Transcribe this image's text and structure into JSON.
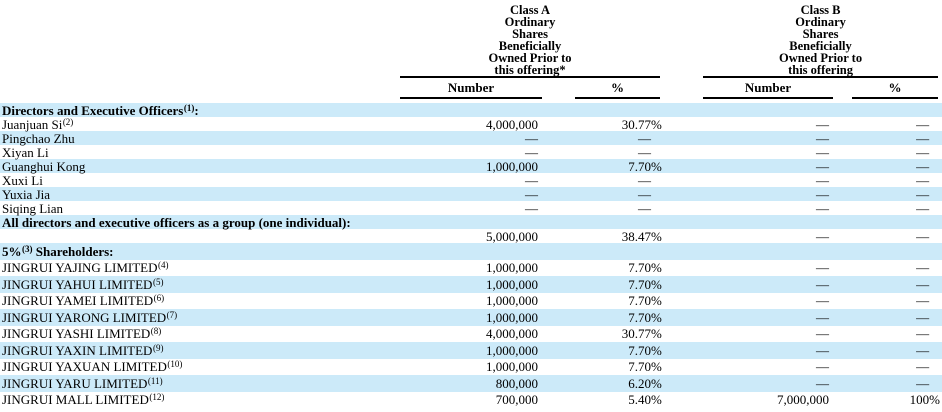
{
  "table": {
    "col_groups": [
      {
        "title_lines": [
          "Class A",
          "Ordinary",
          "Shares",
          "Beneficially",
          "Owned Prior to",
          "this offering*"
        ],
        "sub": [
          "Number",
          "%"
        ]
      },
      {
        "title_lines": [
          "Class B",
          "Ordinary",
          "Shares",
          "Beneficially",
          "Owned Prior to",
          "this offering"
        ],
        "sub": [
          "Number",
          "%"
        ]
      }
    ],
    "rows": [
      {
        "label": {
          "text": "Directors and Executive Officers",
          "sup": "(1)",
          "after": ":"
        },
        "bold": true,
        "shaded": true,
        "section": 1,
        "values": [
          "",
          "",
          "",
          ""
        ]
      },
      {
        "label": {
          "text": "Juanjuan Si",
          "sup": "(2)",
          "after": ""
        },
        "bold": false,
        "shaded": false,
        "section": 1,
        "values": [
          "4,000,000",
          "30.77%",
          "—",
          "—"
        ]
      },
      {
        "label": {
          "text": "Pingchao Zhu",
          "sup": "",
          "after": ""
        },
        "bold": false,
        "shaded": true,
        "section": 1,
        "values": [
          "—",
          "—",
          "—",
          "—"
        ]
      },
      {
        "label": {
          "text": "Xiyan Li",
          "sup": "",
          "after": ""
        },
        "bold": false,
        "shaded": false,
        "section": 1,
        "values": [
          "—",
          "—",
          "—",
          "—"
        ]
      },
      {
        "label": {
          "text": "Guanghui Kong",
          "sup": "",
          "after": ""
        },
        "bold": false,
        "shaded": true,
        "section": 1,
        "values": [
          "1,000,000",
          "7.70%",
          "—",
          "—"
        ]
      },
      {
        "label": {
          "text": "Xuxi Li",
          "sup": "",
          "after": ""
        },
        "bold": false,
        "shaded": false,
        "section": 1,
        "values": [
          "—",
          "—",
          "—",
          "—"
        ]
      },
      {
        "label": {
          "text": "Yuxia Jia",
          "sup": "",
          "after": ""
        },
        "bold": false,
        "shaded": true,
        "section": 1,
        "values": [
          "—",
          "—",
          "—",
          "—"
        ]
      },
      {
        "label": {
          "text": "Siqing Lian",
          "sup": "",
          "after": ""
        },
        "bold": false,
        "shaded": false,
        "section": 1,
        "values": [
          "—",
          "—",
          "—",
          "—"
        ]
      },
      {
        "label": {
          "text": "All directors and executive officers as a group (one individual):",
          "sup": "",
          "after": ""
        },
        "bold": true,
        "shaded": true,
        "section": 1,
        "values": [
          "",
          "",
          "",
          ""
        ]
      },
      {
        "label": {
          "text": "",
          "sup": "",
          "after": ""
        },
        "bold": false,
        "shaded": false,
        "section": 1,
        "values": [
          "5,000,000",
          "38.47%",
          "—",
          "—"
        ]
      },
      {
        "label": {
          "text": "5%",
          "sup": "(3)",
          "after": " Shareholders:"
        },
        "bold": true,
        "shaded": true,
        "section": 2,
        "values": [
          "",
          "",
          "",
          ""
        ]
      },
      {
        "label": {
          "text": "JINGRUI YAJING LIMITED",
          "sup": "(4)",
          "after": ""
        },
        "bold": false,
        "shaded": false,
        "section": 2,
        "values": [
          "1,000,000",
          "7.70%",
          "—",
          "—"
        ]
      },
      {
        "label": {
          "text": "JINGRUI YAHUI LIMITED",
          "sup": "(5)",
          "after": ""
        },
        "bold": false,
        "shaded": true,
        "section": 2,
        "values": [
          "1,000,000",
          "7.70%",
          "—",
          "—"
        ]
      },
      {
        "label": {
          "text": "JINGRUI YAMEI LIMITED",
          "sup": "(6)",
          "after": ""
        },
        "bold": false,
        "shaded": false,
        "section": 2,
        "values": [
          "1,000,000",
          "7.70%",
          "—",
          "—"
        ]
      },
      {
        "label": {
          "text": "JINGRUI YARONG LIMITED",
          "sup": "(7)",
          "after": ""
        },
        "bold": false,
        "shaded": true,
        "section": 2,
        "values": [
          "1,000,000",
          "7.70%",
          "—",
          "—"
        ]
      },
      {
        "label": {
          "text": "JINGRUI YASHI LIMITED",
          "sup": "(8)",
          "after": ""
        },
        "bold": false,
        "shaded": false,
        "section": 2,
        "values": [
          "4,000,000",
          "30.77%",
          "—",
          "—"
        ]
      },
      {
        "label": {
          "text": "JINGRUI YAXIN LIMITED",
          "sup": "(9)",
          "after": ""
        },
        "bold": false,
        "shaded": true,
        "section": 2,
        "values": [
          "1,000,000",
          "7.70%",
          "—",
          "—"
        ]
      },
      {
        "label": {
          "text": "JINGRUI YAXUAN LIMITED",
          "sup": "(10)",
          "after": ""
        },
        "bold": false,
        "shaded": false,
        "section": 2,
        "values": [
          "1,000,000",
          "7.70%",
          "—",
          "—"
        ]
      },
      {
        "label": {
          "text": "JINGRUI YARU LIMITED",
          "sup": "(11)",
          "after": ""
        },
        "bold": false,
        "shaded": true,
        "section": 2,
        "values": [
          "800,000",
          "6.20%",
          "—",
          "—"
        ]
      },
      {
        "label": {
          "text": "JINGRUI MALL LIMITED",
          "sup": "(12)",
          "after": ""
        },
        "bold": false,
        "shaded": false,
        "section": 2,
        "values": [
          "700,000",
          "5.40%",
          "7,000,000",
          "100%"
        ]
      }
    ],
    "colors": {
      "row_shade": "#cceaf9",
      "text": "#000000",
      "rule": "#000000"
    }
  }
}
